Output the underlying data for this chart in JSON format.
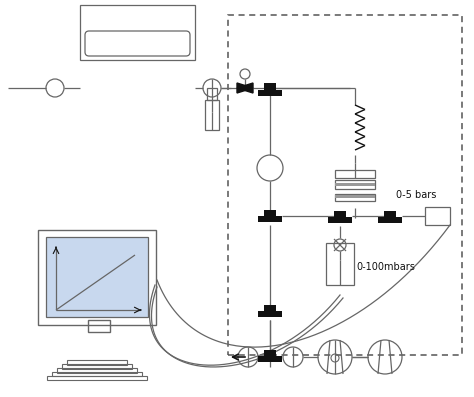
{
  "bg_color": "#ffffff",
  "line_color": "#666666",
  "dark_color": "#111111",
  "light_blue": "#c8d8ee",
  "label_05bars": "0-5 bars",
  "label_0100mbars": "0-100mbars",
  "font_size_label": 7
}
